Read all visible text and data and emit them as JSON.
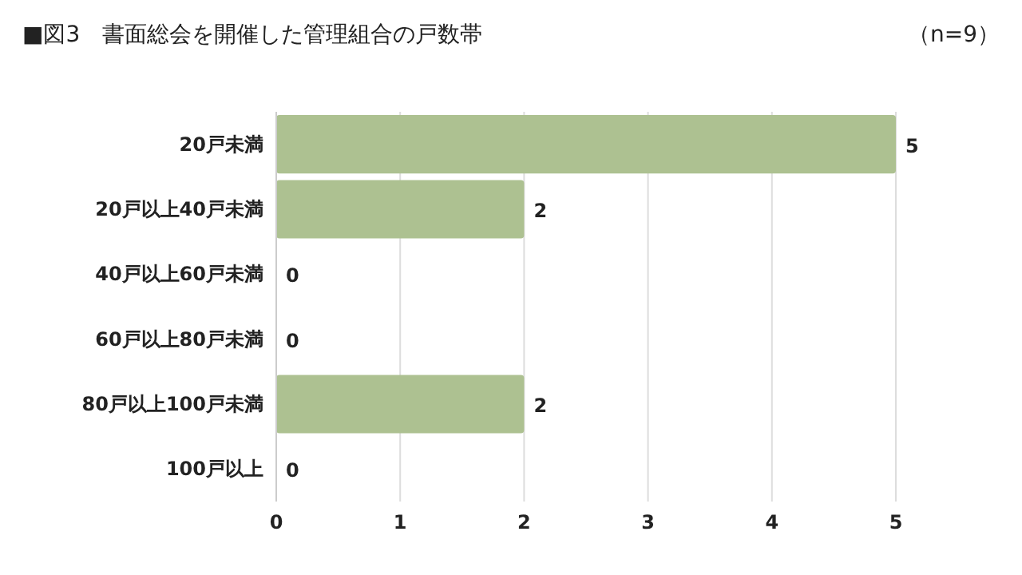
{
  "chart_data": {
    "type": "bar",
    "orientation": "horizontal",
    "title": "■図3　書面総会を開催した管理組合の戸数帯",
    "annotations": [
      "（n=9）"
    ],
    "categories": [
      "20戸未満",
      "20戸以上40戸未満",
      "40戸以上60戸未満",
      "60戸以上80戸未満",
      "80戸以上100戸未満",
      "100戸以上"
    ],
    "values": [
      5,
      2,
      0,
      0,
      2,
      0
    ],
    "color": "#adc191",
    "xlim": [
      0,
      5
    ],
    "xticks": [
      0,
      1,
      2,
      3,
      4,
      5
    ],
    "grid": "x",
    "data_labels": true
  }
}
